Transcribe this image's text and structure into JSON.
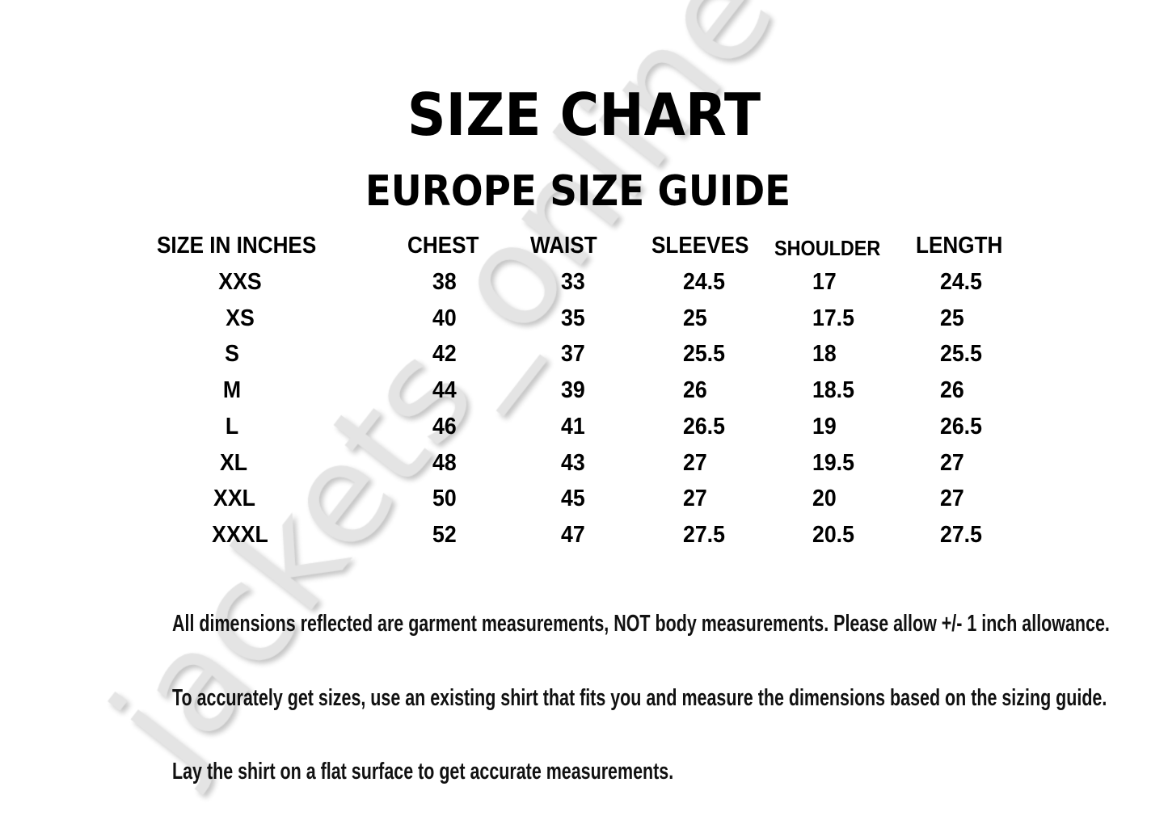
{
  "watermark": "jackets_online",
  "title": "SIZE CHART",
  "subtitle": "EUROPE SIZE GUIDE",
  "table": {
    "headers": [
      "SIZE IN INCHES",
      "CHEST",
      "WAIST",
      "SLEEVES",
      "SHOULDER",
      "LENGTH"
    ],
    "rows": [
      [
        "XXS",
        "38",
        "33",
        "24.5",
        "17",
        "24.5"
      ],
      [
        "XS",
        "40",
        "35",
        "25",
        "17.5",
        "25"
      ],
      [
        "S",
        "42",
        "37",
        "25.5",
        "18",
        "25.5"
      ],
      [
        "M",
        "44",
        "39",
        "26",
        "18.5",
        "26"
      ],
      [
        "L",
        "46",
        "41",
        "26.5",
        "19",
        "26.5"
      ],
      [
        "XL",
        "48",
        "43",
        "27",
        "19.5",
        "27"
      ],
      [
        "XXL",
        "50",
        "45",
        "27",
        "20",
        "27"
      ],
      [
        "XXXL",
        "52",
        "47",
        "27.5",
        "20.5",
        "27.5"
      ]
    ]
  },
  "notes": [
    "All dimensions reflected are garment measurements, NOT body measurements. Please allow +/- 1 inch allowance.",
    "To accurately get sizes, use an existing shirt that fits you and measure the dimensions based on the sizing guide.",
    "Lay the shirt on a flat surface to get accurate measurements."
  ]
}
